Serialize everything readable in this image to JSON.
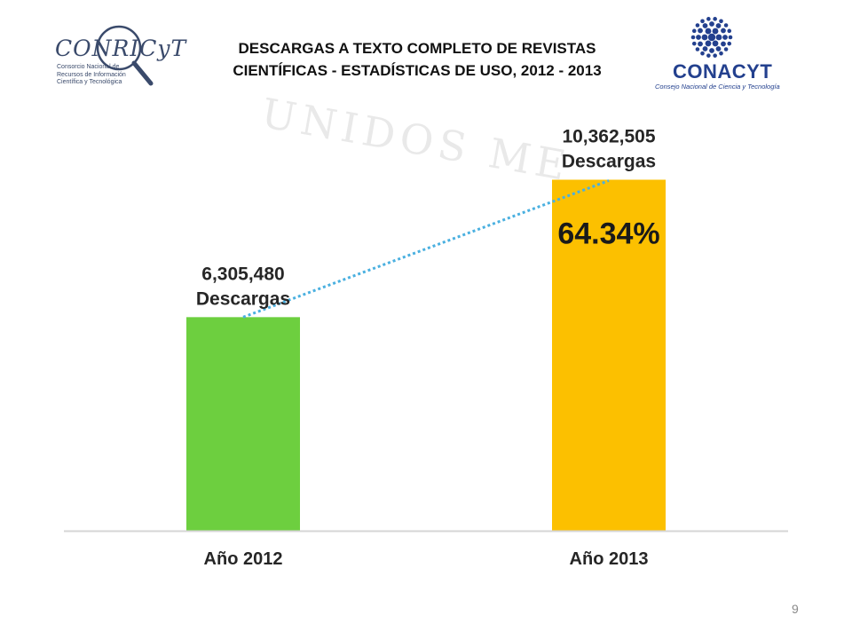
{
  "header": {
    "title_line1": "DESCARGAS A TEXTO COMPLETO DE REVISTAS",
    "title_line2": "CIENTÍFICAS - ESTADÍSTICAS DE USO, 2012 - 2013"
  },
  "logos": {
    "left": {
      "name": "CONRICyT",
      "subtitle": [
        "Consorcio Nacional de",
        "Recursos de Información",
        "Científica y Tecnológica"
      ]
    },
    "right": {
      "name": "CONACYT",
      "subtitle": "Consejo Nacional de Ciencia y Tecnología"
    }
  },
  "watermark": "UNIDOS ME",
  "chart_data": {
    "type": "bar",
    "categories": [
      "Año 2012",
      "Año 2013"
    ],
    "values": [
      6305480,
      10362505
    ],
    "value_labels": [
      "6,305,480",
      "10,362,505"
    ],
    "unit_label": "Descargas",
    "growth_label": "64.34%",
    "colors": [
      "#6dcf3f",
      "#fcc000"
    ],
    "trend_color": "#4ab0e0",
    "ylim": [
      0,
      12000000
    ],
    "grid": false
  },
  "page_number": "9"
}
